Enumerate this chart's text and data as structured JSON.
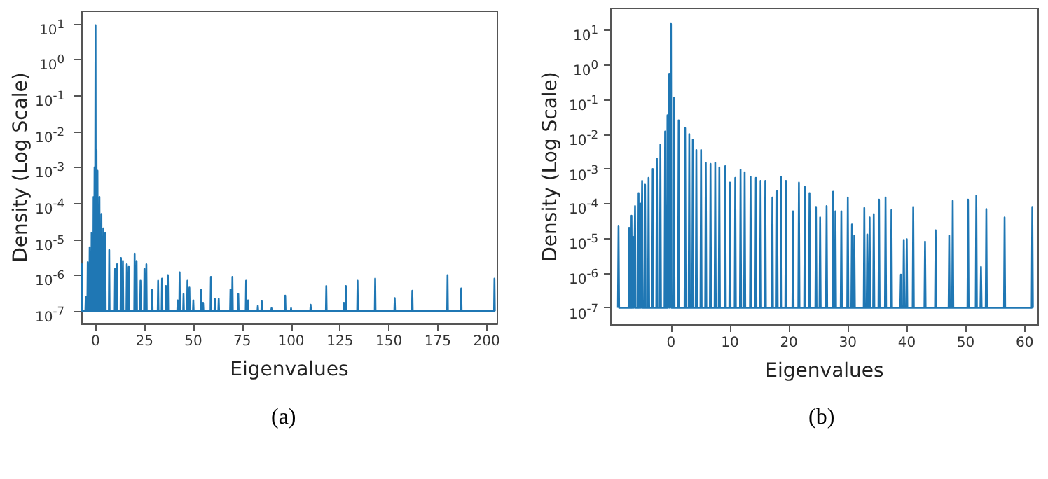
{
  "chart_data": [
    {
      "type": "line",
      "xlabel": "Eigenvalues",
      "ylabel": "Density (Log Scale)",
      "annotations": [
        "(a)"
      ],
      "log": "y",
      "marker": "none",
      "line_style": "solid",
      "xlim": [
        -7.3,
        205.5
      ],
      "xticks": [
        0,
        25,
        50,
        75,
        100,
        125,
        150,
        175,
        200
      ],
      "ylim": [
        4.5e-08,
        22
      ],
      "yticks": [
        {
          "value": 1e-07,
          "label": "10$^{-7}$"
        },
        {
          "value": 1e-06,
          "label": "10$^{-6}$"
        },
        {
          "value": 1e-05,
          "label": "10$^{-5}$"
        },
        {
          "value": 0.0001,
          "label": "10$^{-4}$"
        },
        {
          "value": 0.001,
          "label": "10$^{-3}$"
        },
        {
          "value": 0.01,
          "label": "10$^{-2}$"
        },
        {
          "value": 0.1,
          "label": "10$^{-1}$"
        },
        {
          "value": 1,
          "label": "10$^{0}$"
        },
        {
          "value": 10,
          "label": "10$^{1}$"
        }
      ],
      "series": [
        {
          "color": "#1f77b4",
          "x": [
            -7.2,
            -7,
            -6.8,
            -5.2,
            -5,
            -4.8,
            -4.2,
            -4,
            -3.8,
            -3.2,
            -3,
            -2.8,
            -2.2,
            -2,
            -1.8,
            -1.2,
            -1,
            -0.8,
            -0.7,
            -0.5,
            -0.3,
            -0.2,
            0,
            0.2,
            0.3,
            0.5,
            0.7,
            0.8,
            1,
            1.2,
            1.8,
            2,
            2.2,
            2.8,
            3,
            3.2,
            3.8,
            4,
            4.2,
            4.8,
            5,
            5.2,
            6.8,
            7,
            7.2,
            9.8,
            10,
            10.2,
            10.8,
            11,
            11.2,
            12.8,
            13,
            13.2,
            13.8,
            14,
            14.2,
            15.8,
            16,
            16.2,
            16.8,
            17,
            17.2,
            19.8,
            20,
            20.2,
            20.8,
            21,
            21.2,
            22.8,
            23,
            23.2,
            24.8,
            25,
            25.2,
            25.8,
            26,
            26.2,
            28.8,
            29,
            29.2,
            31.8,
            32,
            32.2,
            33.8,
            34,
            34.2,
            35.8,
            36,
            36.2,
            36.8,
            37,
            37.2,
            41.8,
            42,
            42.2,
            42.8,
            43,
            43.2,
            44.8,
            45,
            45.2,
            46.8,
            47,
            47.2,
            47.8,
            48,
            48.2,
            49.8,
            50,
            50.2,
            53.8,
            54,
            54.2,
            54.8,
            55,
            55.2,
            58.8,
            59,
            59.2,
            60.8,
            61,
            61.2,
            62.8,
            63,
            63.2,
            68.8,
            69,
            69.2,
            69.8,
            70,
            70.2,
            72.8,
            73,
            73.2,
            76.8,
            77,
            77.2,
            77.8,
            78,
            78.2,
            82.8,
            83,
            83.2,
            84.8,
            85,
            85.2,
            89.8,
            90,
            90.2,
            96.8,
            97,
            97.2,
            99.8,
            100,
            100.2,
            109.8,
            110,
            110.2,
            117.8,
            118,
            118.2,
            126.8,
            127,
            127.2,
            127.8,
            128,
            128.2,
            133.8,
            134,
            134.2,
            142.8,
            143,
            143.2,
            152.8,
            153,
            153.2,
            161.8,
            162,
            162.2,
            179.8,
            180,
            180.2,
            186.8,
            187,
            187.2,
            203.8,
            204,
            204.2
          ],
          "values": [
            1e-07,
            2e-06,
            1e-07,
            1e-07,
            2.5e-07,
            1e-07,
            1e-07,
            2.3e-06,
            1e-07,
            1e-07,
            6e-06,
            1e-07,
            1e-07,
            1.5e-05,
            1e-07,
            1e-07,
            0.00015,
            1e-07,
            1e-07,
            0.001,
            1e-07,
            1e-07,
            9,
            1e-07,
            1e-07,
            0.003,
            1e-07,
            1e-07,
            0.0008,
            1e-07,
            1e-07,
            0.00015,
            1e-07,
            1e-07,
            5e-05,
            1e-07,
            1e-07,
            2e-05,
            1e-07,
            1e-07,
            1.5e-05,
            1e-07,
            1e-07,
            5e-06,
            1e-07,
            1e-07,
            1.5e-06,
            1e-07,
            1e-07,
            2e-06,
            1e-07,
            1e-07,
            3e-06,
            1e-07,
            1e-07,
            2.5e-06,
            1e-07,
            1e-07,
            2e-06,
            1e-07,
            1e-07,
            1.7e-06,
            1e-07,
            1e-07,
            4e-06,
            1e-07,
            1e-07,
            2.5e-06,
            1e-07,
            1e-07,
            7e-07,
            1e-07,
            1e-07,
            1.5e-06,
            1e-07,
            1e-07,
            2e-06,
            1e-07,
            1e-07,
            4e-07,
            1e-07,
            1e-07,
            7e-07,
            1e-07,
            1e-07,
            8e-07,
            1e-07,
            1e-07,
            5e-07,
            1e-07,
            1e-07,
            1e-06,
            1e-07,
            1e-07,
            2e-07,
            1e-07,
            1e-07,
            1.2e-06,
            1e-07,
            1e-07,
            3e-07,
            1e-07,
            1e-07,
            7e-07,
            1e-07,
            1e-07,
            4.5e-07,
            1e-07,
            1e-07,
            2e-07,
            1e-07,
            1e-07,
            4e-07,
            1e-07,
            1e-07,
            1.7e-07,
            1e-07,
            1e-07,
            9e-07,
            1e-07,
            1e-07,
            2.2e-07,
            1e-07,
            1e-07,
            2.2e-07,
            1e-07,
            1e-07,
            4e-07,
            1e-07,
            1e-07,
            9e-07,
            1e-07,
            1e-07,
            3e-07,
            1e-07,
            1e-07,
            7e-07,
            1e-07,
            1e-07,
            2e-07,
            1e-07,
            1e-07,
            1.4e-07,
            1e-07,
            1e-07,
            1.9e-07,
            1e-07,
            1e-07,
            1.2e-07,
            1e-07,
            1e-07,
            2.7e-07,
            1e-07,
            1e-07,
            1.2e-07,
            1e-07,
            1e-07,
            1.5e-07,
            1e-07,
            1e-07,
            5e-07,
            1e-07,
            1e-07,
            1.7e-07,
            1e-07,
            1e-07,
            5e-07,
            1e-07,
            1e-07,
            7e-07,
            1e-07,
            1e-07,
            8e-07,
            1e-07,
            1e-07,
            2.3e-07,
            1e-07,
            1e-07,
            3.7e-07,
            1e-07,
            1e-07,
            1e-06,
            1e-07,
            1e-07,
            4.3e-07,
            1e-07,
            1e-07,
            8e-07,
            1e-07
          ]
        }
      ]
    },
    {
      "type": "line",
      "xlabel": "Eigenvalues",
      "ylabel": "Density (Log Scale)",
      "annotations": [
        "(b)"
      ],
      "log": "y",
      "marker": "none",
      "line_style": "solid",
      "xlim": [
        -10.2,
        62.3
      ],
      "xticks": [
        0,
        10,
        20,
        30,
        40,
        50,
        60
      ],
      "ylim": [
        3.2e-08,
        42
      ],
      "yticks": [
        {
          "value": 1e-07,
          "label": "10$^{-7}$"
        },
        {
          "value": 1e-06,
          "label": "10$^{-6}$"
        },
        {
          "value": 1e-05,
          "label": "10$^{-5}$"
        },
        {
          "value": 0.0001,
          "label": "10$^{-4}$"
        },
        {
          "value": 0.001,
          "label": "10$^{-3}$"
        },
        {
          "value": 0.01,
          "label": "10$^{-2}$"
        },
        {
          "value": 0.1,
          "label": "10$^{-1}$"
        },
        {
          "value": 1,
          "label": "10$^{0}$"
        },
        {
          "value": 10,
          "label": "10$^{1}$"
        }
      ],
      "series": [
        {
          "color": "#1f77b4",
          "x": [
            -9,
            -8.9,
            -8.8,
            -7.2,
            -7.1,
            -7,
            -6.8,
            -6.7,
            -6.6,
            -6.5,
            -6.4,
            -6.3,
            -6.2,
            -6.1,
            -6,
            -5.6,
            -5.5,
            -5.4,
            -5.3,
            -5.2,
            -5.1,
            -5,
            -4.9,
            -4.8,
            -4.5,
            -4.4,
            -4.3,
            -3.9,
            -3.8,
            -3.7,
            -3.2,
            -3.1,
            -3,
            -2.5,
            -2.4,
            -2.3,
            -1.9,
            -1.8,
            -1.7,
            -1.1,
            -1,
            -0.9,
            -0.7,
            -0.6,
            -0.5,
            -0.4,
            -0.3,
            -0.2,
            -0.1,
            0,
            0.1,
            0.4,
            0.5,
            0.6,
            1.2,
            1.3,
            1.4,
            2.3,
            2.4,
            2.5,
            3,
            3.1,
            3.2,
            3.6,
            3.7,
            3.8,
            4.2,
            4.3,
            4.4,
            5,
            5.1,
            5.2,
            5.8,
            5.9,
            6,
            6.6,
            6.7,
            6.8,
            7.4,
            7.5,
            7.6,
            8.1,
            8.2,
            8.3,
            9.1,
            9.2,
            9.3,
            9.9,
            10,
            10.1,
            10.8,
            10.9,
            11,
            11.7,
            11.8,
            11.9,
            12.4,
            12.5,
            12.6,
            13.4,
            13.5,
            13.6,
            14.3,
            14.4,
            14.5,
            15.1,
            15.2,
            15.3,
            15.9,
            16,
            16.1,
            17.1,
            17.2,
            17.3,
            17.9,
            18,
            18.1,
            18.6,
            18.7,
            18.8,
            19.4,
            19.5,
            19.6,
            20.6,
            20.7,
            20.8,
            21.6,
            21.7,
            21.8,
            22.6,
            22.7,
            22.8,
            23.4,
            23.5,
            23.6,
            24.5,
            24.6,
            24.7,
            25.2,
            25.3,
            25.4,
            26.3,
            26.4,
            26.5,
            27.4,
            27.5,
            27.6,
            27.8,
            27.9,
            28,
            28.8,
            28.9,
            29,
            29.9,
            30,
            30.1,
            30.6,
            30.7,
            30.8,
            31,
            31.1,
            31.2,
            32.7,
            32.8,
            32.9,
            33.2,
            33.3,
            33.4,
            33.6,
            33.7,
            33.8,
            34.3,
            34.4,
            34.5,
            35.2,
            35.3,
            35.4,
            36.3,
            36.4,
            36.5,
            37.3,
            37.4,
            37.5,
            38.9,
            39,
            39.1,
            39.4,
            39.5,
            39.6,
            39.9,
            40,
            40.1,
            41,
            41.1,
            41.2,
            43,
            43.1,
            43.2,
            44.8,
            44.9,
            45,
            47.1,
            47.2,
            47.3,
            47.7,
            47.8,
            47.9,
            50.3,
            50.4,
            50.5,
            51.7,
            51.8,
            51.9,
            52.5,
            52.6,
            52.7,
            53.4,
            53.5,
            53.6,
            56.5,
            56.6,
            56.7,
            61.2,
            61.3,
            61.4
          ],
          "values": [
            1e-07,
            2.2e-05,
            1e-07,
            1e-07,
            2e-05,
            1e-07,
            1e-07,
            4.5e-05,
            1e-07,
            1e-07,
            1.1e-05,
            1e-07,
            1e-07,
            8.5e-05,
            1e-07,
            1e-07,
            0.0002,
            1e-07,
            1e-07,
            0.0001,
            1e-07,
            1e-07,
            0.00045,
            1e-07,
            1e-07,
            0.00035,
            1e-07,
            1e-07,
            0.00055,
            1e-07,
            1e-07,
            0.001,
            1e-07,
            1e-07,
            0.002,
            1e-07,
            1e-07,
            0.005,
            1e-07,
            1e-07,
            0.012,
            1e-07,
            1e-07,
            0.035,
            1e-07,
            1e-07,
            0.55,
            1e-07,
            1e-07,
            15,
            1e-07,
            1e-07,
            0.11,
            1e-07,
            1e-07,
            0.025,
            1e-07,
            1e-07,
            0.015,
            1e-07,
            1e-07,
            0.01,
            1e-07,
            1e-07,
            0.007,
            1e-07,
            1e-07,
            0.0035,
            1e-07,
            1e-07,
            0.0035,
            1e-07,
            1e-07,
            0.0015,
            1e-07,
            1e-07,
            0.0014,
            1e-07,
            1e-07,
            0.0015,
            1e-07,
            1e-07,
            0.0011,
            1e-07,
            1e-07,
            0.0012,
            1e-07,
            1e-07,
            0.0004,
            1e-07,
            1e-07,
            0.00055,
            1e-07,
            1e-07,
            0.00095,
            1e-07,
            1e-07,
            0.0008,
            1e-07,
            1e-07,
            0.0006,
            1e-07,
            1e-07,
            0.00055,
            1e-07,
            1e-07,
            0.00045,
            1e-07,
            1e-07,
            0.00045,
            1e-07,
            1e-07,
            0.00015,
            1e-07,
            1e-07,
            0.00023,
            1e-07,
            1e-07,
            0.0006,
            1e-07,
            1e-07,
            0.00045,
            1e-07,
            1e-07,
            6e-05,
            1e-07,
            1e-07,
            0.0004,
            1e-07,
            1e-07,
            0.0003,
            1e-07,
            1e-07,
            0.0002,
            1e-07,
            1e-07,
            8e-05,
            1e-07,
            1e-07,
            4e-05,
            1e-07,
            1e-07,
            8.5e-05,
            1e-07,
            1e-07,
            0.00022,
            1e-07,
            1e-07,
            6e-05,
            1e-07,
            1e-07,
            6e-05,
            1e-07,
            1e-07,
            0.00015,
            1e-07,
            1e-07,
            2.5e-05,
            1e-07,
            1e-07,
            1.2e-05,
            1e-07,
            1e-07,
            7.5e-05,
            1e-07,
            1e-07,
            1.3e-05,
            1e-07,
            1e-07,
            4e-05,
            1e-07,
            1e-07,
            5e-05,
            1e-07,
            1e-07,
            0.00013,
            1e-07,
            1e-07,
            0.00015,
            1e-07,
            1e-07,
            6.5e-05,
            1e-07,
            1e-07,
            9e-07,
            1e-07,
            1e-07,
            9e-06,
            1e-07,
            1e-07,
            9.5e-06,
            1e-07,
            1e-07,
            8e-05,
            1e-07,
            1e-07,
            8e-06,
            1e-07,
            1e-07,
            1.7e-05,
            1e-07,
            1e-07,
            1.2e-05,
            1e-07,
            1e-07,
            0.00012,
            1e-07,
            1e-07,
            0.00013,
            1e-07,
            1e-07,
            0.00017,
            1e-07,
            1e-07,
            1.5e-06,
            1e-07,
            1e-07,
            7e-05,
            1e-07,
            1e-07,
            4e-05,
            1e-07,
            1e-07,
            8e-05,
            1e-07
          ]
        }
      ]
    }
  ]
}
